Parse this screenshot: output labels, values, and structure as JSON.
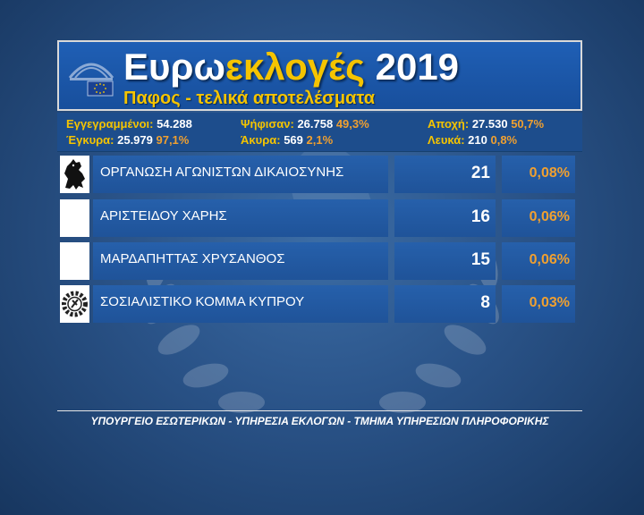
{
  "header": {
    "title_part1": "Ευρω",
    "title_part2": "εκλογές",
    "title_part3": " 2019",
    "subtitle": "Παφος - τελικά αποτελέσματα"
  },
  "stats": {
    "registered_label": "Εγγεγραμμένοι:",
    "registered_value": " 54.288",
    "voted_label": "Ψήφισαν:",
    "voted_value": " 26.758",
    "voted_pct": " 49,3%",
    "abstention_label": "Αποχή:",
    "abstention_value": " 27.530",
    "abstention_pct": " 50,7%",
    "valid_label": "Έγκυρα:",
    "valid_value": " 25.979",
    "valid_pct": " 97,1%",
    "invalid_label": "Άκυρα:",
    "invalid_value": " 569",
    "invalid_pct": " 2,1%",
    "blank_label": "Λευκά:",
    "blank_value": " 210",
    "blank_pct": " 0,8%"
  },
  "results": [
    {
      "name": "ΟΡΓΑΝΩΣΗ ΑΓΩΝΙΣΤΩΝ ΔΙΚΑΙΟΣΥΝΗΣ",
      "votes": "21",
      "pct": "0,08%",
      "icon": "lion-emblem-icon"
    },
    {
      "name": "ΑΡΙΣΤΕΙΔΟΥ ΧΑΡΗΣ",
      "votes": "16",
      "pct": "0,06%",
      "icon": "blank-icon"
    },
    {
      "name": "ΜΑΡΔΑΠΗΤΤΑΣ ΧΡΥΣΑΝΘΟΣ",
      "votes": "15",
      "pct": "0,06%",
      "icon": "blank-icon"
    },
    {
      "name": "ΣΟΣΙΑΛΙΣΤΙΚΟ ΚΟΜΜΑ ΚΥΠΡΟΥ",
      "votes": "8",
      "pct": "0,03%",
      "icon": "gear-emblem-icon"
    }
  ],
  "footer": {
    "text": "ΥΠΟΥΡΓΕΙΟ ΕΣΩΤΕΡΙΚΩΝ - ΥΠΗΡΕΣΙΑ ΕΚΛΟΓΩΝ - ΤΜΗΜΑ ΥΠΗΡΕΣΙΩΝ ΠΛΗΡΟΦΟΡΙΚΗΣ"
  },
  "colors": {
    "accent_yellow": "#f5c400",
    "accent_orange": "#f0a030",
    "panel_blue": "#2660ab",
    "background_blue": "#2a5388"
  }
}
